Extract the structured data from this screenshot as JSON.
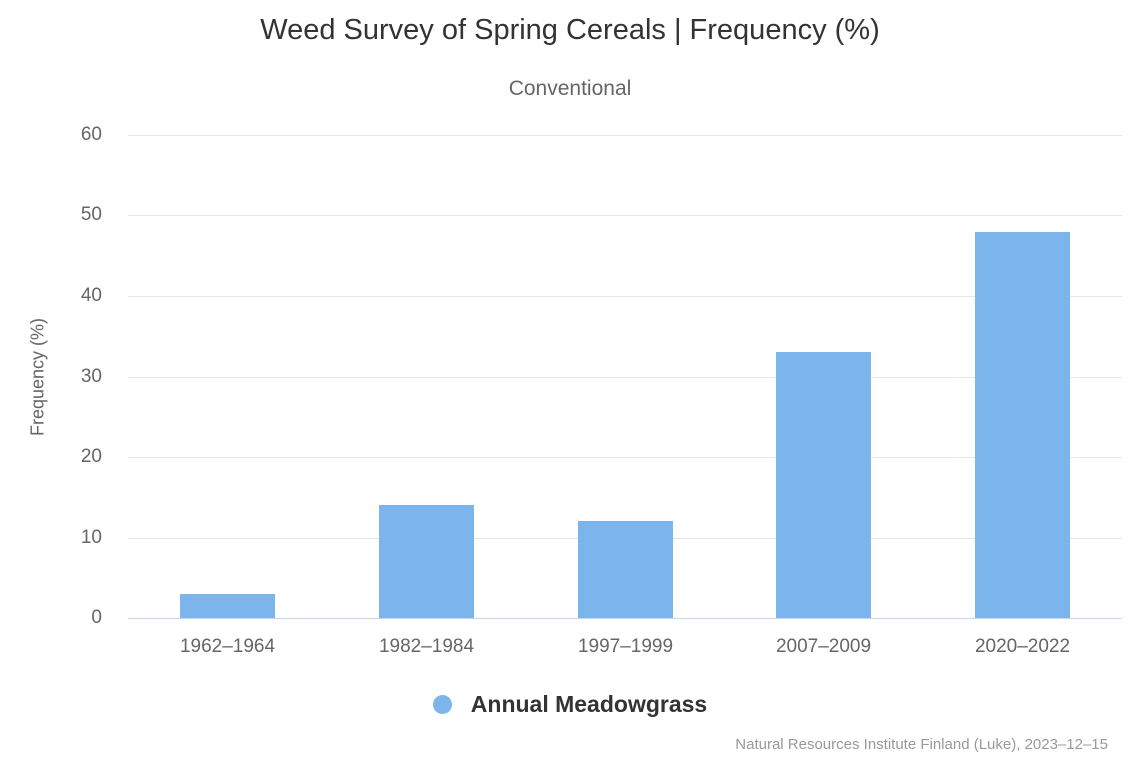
{
  "colors": {
    "bar_fill": "#7cb5ec",
    "grid_line": "#e6e6e6",
    "axis_line": "#ccd6eb",
    "title_text": "#333333",
    "muted_text": "#666666",
    "legend_text": "#333333",
    "credits_text": "#999999",
    "background": "#ffffff"
  },
  "icons": {
    "legend_marker": "circle"
  },
  "chart_data": {
    "type": "bar",
    "title": "Weed Survey of Spring Cereals | Frequency (%)",
    "subtitle": "Conventional",
    "categories": [
      "1962–1964",
      "1982–1984",
      "1997–1999",
      "2007–2009",
      "2020–2022"
    ],
    "series": [
      {
        "name": "Annual Meadowgrass",
        "values": [
          3,
          14,
          12,
          33,
          48
        ]
      }
    ],
    "xlabel": "",
    "ylabel": "Frequency (%)",
    "ylim": [
      0,
      60
    ],
    "ytick_step": 10,
    "yticks": [
      0,
      10,
      20,
      30,
      40,
      50,
      60
    ],
    "grid": true,
    "legend_position": "bottom-center",
    "bar_color": "#7cb5ec",
    "credits": "Natural Resources Institute Finland (Luke), 2023–12–15"
  }
}
